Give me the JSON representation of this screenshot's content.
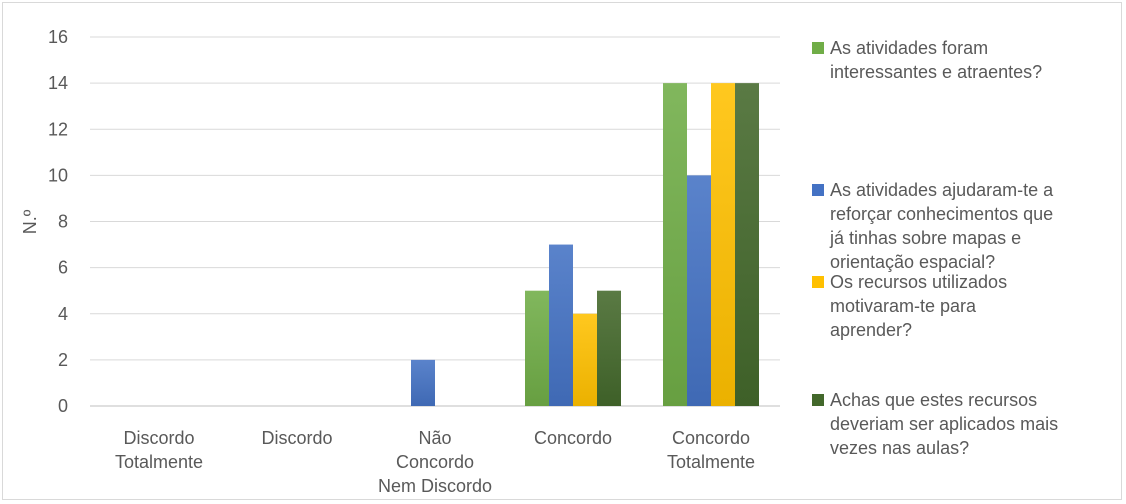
{
  "chart_data": {
    "type": "bar",
    "title": "",
    "xlabel": "",
    "ylabel": "N.º",
    "ylim": [
      0,
      16
    ],
    "yticks": [
      0,
      2,
      4,
      6,
      8,
      10,
      12,
      14,
      16
    ],
    "grid": true,
    "legend_position": "right",
    "categories": [
      [
        "Discordo",
        "Totalmente"
      ],
      [
        "Discordo"
      ],
      [
        "Não",
        "Concordo",
        "Nem Discordo"
      ],
      [
        "Concordo"
      ],
      [
        "Concordo",
        "Totalmente"
      ]
    ],
    "series": [
      {
        "name": "As atividades foram interessantes e atraentes?",
        "name_lines": [
          "As atividades foram",
          "interessantes e atraentes?"
        ],
        "color": "#70ad47",
        "values": [
          0,
          0,
          0,
          5,
          14
        ]
      },
      {
        "name": "As atividades ajudaram-te a reforçar conhecimentos que já tinhas sobre mapas e orientação espacial?",
        "name_lines": [
          "As atividades ajudaram-te a",
          "reforçar conhecimentos que",
          "já tinhas sobre mapas e",
          "orientação espacial?"
        ],
        "color": "#4472c4",
        "values": [
          0,
          0,
          2,
          7,
          10
        ]
      },
      {
        "name": "Os recursos utilizados motivaram-te para aprender?",
        "name_lines": [
          "Os recursos utilizados",
          "motivaram-te para",
          "aprender?"
        ],
        "color": "#ffc000",
        "values": [
          0,
          0,
          0,
          4,
          14
        ]
      },
      {
        "name": "Achas que estes recursos deveriam ser aplicados mais vezes nas aulas?",
        "name_lines": [
          "Achas que estes recursos",
          "deveriam ser aplicados mais",
          "vezes nas aulas?"
        ],
        "color": "#43682b",
        "values": [
          0,
          0,
          0,
          5,
          14
        ]
      }
    ]
  }
}
